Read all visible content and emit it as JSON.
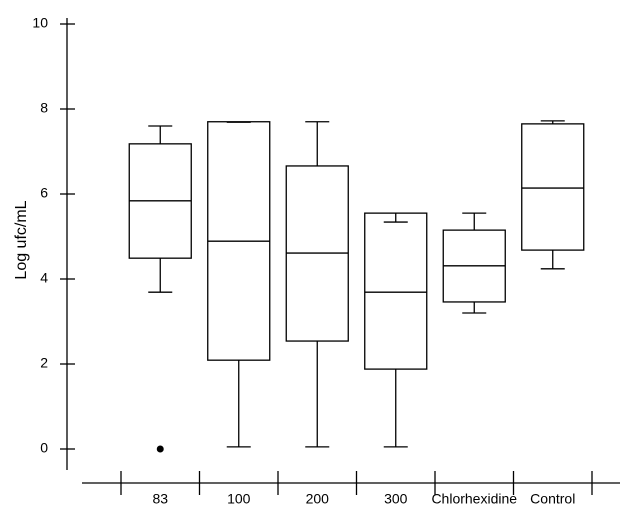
{
  "chart_data": {
    "type": "box",
    "y_label": "Log ufc/mL",
    "categories": [
      "83",
      "100",
      "200",
      "300",
      "Chlorhexidine",
      "Control"
    ],
    "min": [
      3.69,
      0.05,
      0.05,
      0.05,
      3.2,
      4.24
    ],
    "q1": [
      4.49,
      2.09,
      2.54,
      1.88,
      3.46,
      4.68
    ],
    "median": [
      5.84,
      4.89,
      4.61,
      3.69,
      4.31,
      6.14
    ],
    "q3": [
      7.18,
      7.7,
      6.66,
      5.55,
      5.15,
      7.65
    ],
    "max": [
      7.6,
      7.69,
      7.7,
      5.34,
      5.55,
      7.72
    ],
    "outliers": [
      [
        0
      ],
      [],
      [],
      [],
      [],
      []
    ],
    "color": "#000000",
    "ylim": [
      -0.8,
      10.1
    ],
    "yticks": [
      0,
      2,
      4,
      6,
      8,
      10
    ]
  }
}
